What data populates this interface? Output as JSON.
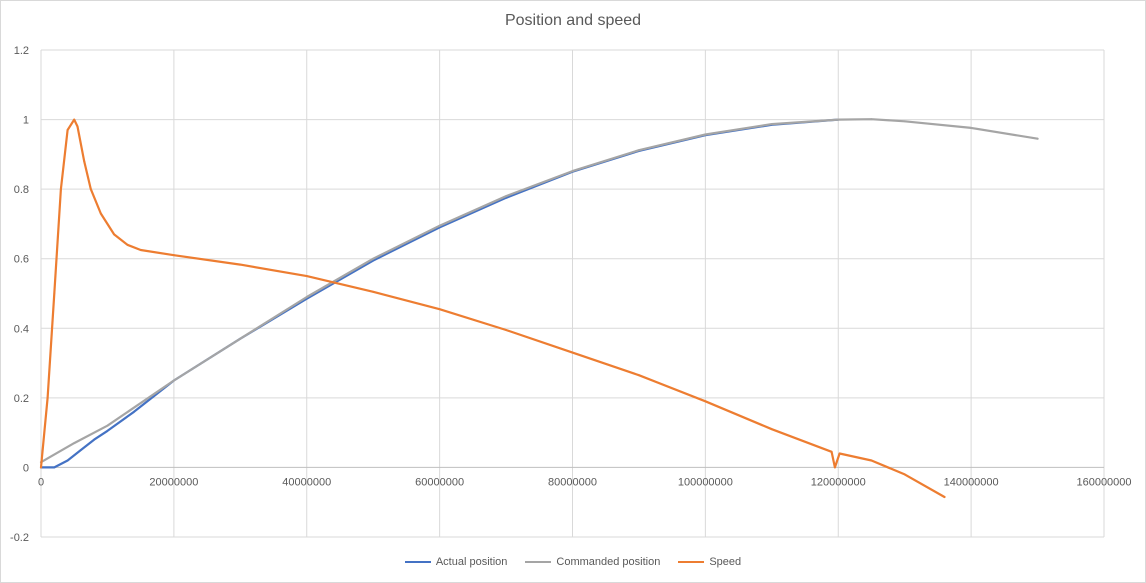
{
  "chart_data": {
    "type": "line",
    "title": "Position and speed",
    "xlabel": "",
    "ylabel": "",
    "xlim": [
      0,
      160000000
    ],
    "ylim": [
      -0.2,
      1.2
    ],
    "x_ticks": [
      "0",
      "20000000",
      "40000000",
      "60000000",
      "80000000",
      "100000000",
      "120000000",
      "140000000",
      "160000000"
    ],
    "y_ticks": [
      "-0.2",
      "0",
      "0.2",
      "0.4",
      "0.6",
      "0.8",
      "1",
      "1.2"
    ],
    "grid": true,
    "legend_position": "bottom",
    "series": [
      {
        "name": "Actual position",
        "color": "#4472c4",
        "x": [
          0,
          2000000,
          4000000,
          6000000,
          8000000,
          10000000,
          14000000,
          20000000,
          30000000,
          40000000,
          50000000,
          60000000,
          70000000,
          80000000,
          90000000,
          100000000,
          110000000,
          120000000
        ],
        "y": [
          0,
          0,
          0.02,
          0.05,
          0.08,
          0.105,
          0.16,
          0.25,
          0.37,
          0.485,
          0.595,
          0.69,
          0.775,
          0.85,
          0.91,
          0.955,
          0.985,
          1.0
        ]
      },
      {
        "name": "Commanded position",
        "color": "#a5a5a5",
        "x": [
          0,
          5000000,
          10000000,
          20000000,
          30000000,
          40000000,
          50000000,
          60000000,
          70000000,
          80000000,
          90000000,
          100000000,
          110000000,
          120000000,
          125000000,
          130000000,
          140000000,
          150000000
        ],
        "y": [
          0.015,
          0.07,
          0.12,
          0.25,
          0.37,
          0.49,
          0.6,
          0.695,
          0.78,
          0.852,
          0.912,
          0.957,
          0.987,
          1.0,
          1.001,
          0.995,
          0.976,
          0.945
        ]
      },
      {
        "name": "Speed",
        "color": "#ed7d31",
        "x": [
          0,
          1000000,
          2000000,
          3000000,
          4000000,
          5000000,
          5500000,
          6500000,
          7500000,
          9000000,
          11000000,
          13000000,
          15000000,
          20000000,
          30000000,
          40000000,
          50000000,
          60000000,
          70000000,
          80000000,
          90000000,
          100000000,
          110000000,
          119000000,
          119500000,
          120200000,
          125000000,
          130000000,
          136000000
        ],
        "y": [
          0,
          0.2,
          0.5,
          0.8,
          0.97,
          1.0,
          0.98,
          0.88,
          0.8,
          0.73,
          0.67,
          0.64,
          0.625,
          0.61,
          0.583,
          0.55,
          0.505,
          0.455,
          0.395,
          0.33,
          0.265,
          0.19,
          0.11,
          0.045,
          0.0,
          0.04,
          0.02,
          -0.02,
          -0.085
        ]
      }
    ]
  }
}
